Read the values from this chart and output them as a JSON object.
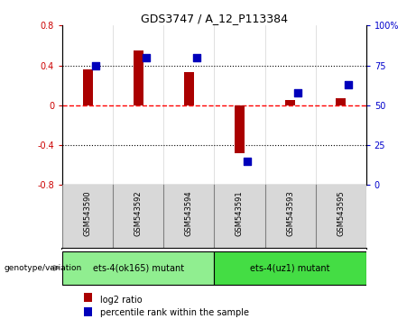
{
  "title": "GDS3747 / A_12_P113384",
  "samples": [
    "GSM543590",
    "GSM543592",
    "GSM543594",
    "GSM543591",
    "GSM543593",
    "GSM543595"
  ],
  "log2_ratio": [
    0.36,
    0.55,
    0.33,
    -0.48,
    0.05,
    0.07
  ],
  "percentile_rank": [
    75,
    80,
    80,
    15,
    58,
    63
  ],
  "groups": [
    {
      "label": "ets-4(ok165) mutant",
      "indices": [
        0,
        1,
        2
      ],
      "color": "#90EE90"
    },
    {
      "label": "ets-4(uz1) mutant",
      "indices": [
        3,
        4,
        5
      ],
      "color": "#44DD44"
    }
  ],
  "bar_color": "#AA0000",
  "dot_color": "#0000BB",
  "left_ylim": [
    -0.8,
    0.8
  ],
  "right_ylim": [
    0,
    100
  ],
  "left_yticks": [
    -0.8,
    -0.4,
    0.0,
    0.4,
    0.8
  ],
  "right_yticks": [
    0,
    25,
    50,
    75,
    100
  ],
  "left_yticklabels": [
    "-0.8",
    "-0.4",
    "0",
    "0.4",
    "0.8"
  ],
  "right_yticklabels": [
    "0",
    "25",
    "50",
    "75",
    "100%"
  ],
  "hlines": [
    0.4,
    0.0,
    -0.4
  ],
  "hline_styles": [
    "dotted",
    "dashed",
    "dotted"
  ],
  "hline_colors": [
    "black",
    "red",
    "black"
  ],
  "bar_width": 0.2,
  "dot_size": 30,
  "left_tick_color": "#CC0000",
  "right_tick_color": "#0000CC",
  "sample_bg_color": "#D8D8D8",
  "plot_bg_color": "#ffffff",
  "legend_items": [
    "log2 ratio",
    "percentile rank within the sample"
  ],
  "genotype_label": "genotype/variation"
}
